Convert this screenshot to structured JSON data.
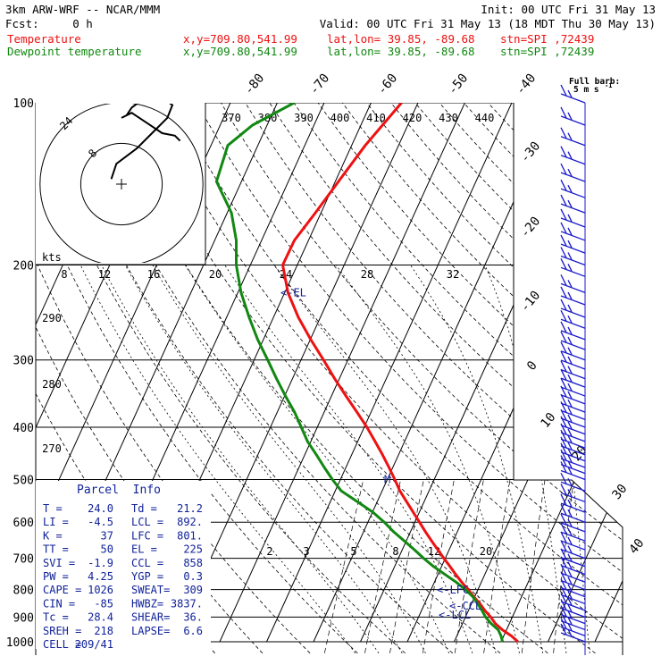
{
  "header": {
    "model": "3km ARW-WRF -- NCAR/MMM",
    "init": "Init: 00 UTC Fri 31 May 13",
    "fcst": "Fcst:     0 h",
    "valid": "Valid: 00 UTC Fri 31 May 13 (18 MDT Thu 30 May 13)",
    "temp_label": "Temperature",
    "dew_label": "Dewpoint temperature",
    "xy": "x,y=709.80,541.99",
    "latlon": "lat,lon= 39.85, -89.68",
    "stn": "stn=SPI ,72439",
    "colors": {
      "temperature": "#ee1111",
      "dewpoint": "#118811",
      "text": "#000000",
      "annot": "#112299"
    }
  },
  "chart_data": {
    "type": "line",
    "title": "",
    "y_axis": {
      "label": "",
      "scale": "log-pressure",
      "range_hPa": [
        1000,
        100
      ],
      "ticks": [
        "100",
        "200",
        "300",
        "400",
        "500",
        "600",
        "700",
        "800",
        "900",
        "1000"
      ]
    },
    "isotherm_labels": [
      "-80",
      "-70",
      "-60",
      "-50",
      "-40",
      "-30",
      "-20",
      "-10",
      "0",
      "10",
      "20",
      "30",
      "40"
    ],
    "theta_labels_top": [
      "370",
      "380",
      "390",
      "400",
      "410",
      "420",
      "430",
      "440"
    ],
    "theta_labels_left": [
      "290",
      "280",
      "270"
    ],
    "mixing_ratio_labels": [
      "8",
      "12",
      "16",
      "20",
      "24",
      "28",
      "32"
    ],
    "mixing_ratio_labels_low": [
      "2",
      "3",
      "5",
      "8",
      "12",
      "20"
    ],
    "series": [
      {
        "name": "Temperature",
        "points": [
          [
            1000,
            23.6
          ],
          [
            975,
            21.6
          ],
          [
            950,
            19.1
          ],
          [
            925,
            17.0
          ],
          [
            900,
            15.4
          ],
          [
            875,
            13.5
          ],
          [
            850,
            11.8
          ],
          [
            825,
            9.8
          ],
          [
            800,
            7.9
          ],
          [
            775,
            5.8
          ],
          [
            750,
            3.8
          ],
          [
            725,
            1.8
          ],
          [
            700,
            -0.3
          ],
          [
            675,
            -2.4
          ],
          [
            650,
            -4.6
          ],
          [
            625,
            -6.8
          ],
          [
            600,
            -9.0
          ],
          [
            575,
            -11.3
          ],
          [
            550,
            -13.7
          ],
          [
            525,
            -16.2
          ],
          [
            500,
            -18.4
          ],
          [
            475,
            -20.8
          ],
          [
            450,
            -23.4
          ],
          [
            425,
            -26.3
          ],
          [
            400,
            -29.4
          ],
          [
            375,
            -33.0
          ],
          [
            350,
            -36.9
          ],
          [
            325,
            -41.0
          ],
          [
            300,
            -45.2
          ],
          [
            275,
            -49.9
          ],
          [
            250,
            -54.7
          ],
          [
            225,
            -59.3
          ],
          [
            200,
            -63.1
          ],
          [
            180,
            -63.0
          ],
          [
            160,
            -61.2
          ],
          [
            140,
            -59.3
          ],
          [
            120,
            -57.1
          ],
          [
            100,
            -53.5
          ]
        ]
      },
      {
        "name": "Dewpoint temperature",
        "points": [
          [
            1000,
            20.3
          ],
          [
            975,
            19.4
          ],
          [
            950,
            18.2
          ],
          [
            925,
            16.1
          ],
          [
            900,
            14.3
          ],
          [
            875,
            12.9
          ],
          [
            850,
            11.3
          ],
          [
            825,
            9.6
          ],
          [
            800,
            7.3
          ],
          [
            775,
            4.6
          ],
          [
            750,
            1.5
          ],
          [
            725,
            -1.7
          ],
          [
            700,
            -4.6
          ],
          [
            675,
            -7.4
          ],
          [
            650,
            -10.4
          ],
          [
            625,
            -13.6
          ],
          [
            600,
            -16.5
          ],
          [
            575,
            -19.9
          ],
          [
            550,
            -24.2
          ],
          [
            525,
            -28.7
          ],
          [
            500,
            -31.7
          ],
          [
            475,
            -34.6
          ],
          [
            450,
            -37.5
          ],
          [
            425,
            -40.7
          ],
          [
            400,
            -43.4
          ],
          [
            375,
            -46.3
          ],
          [
            350,
            -49.8
          ],
          [
            325,
            -53.4
          ],
          [
            300,
            -57.1
          ],
          [
            275,
            -61.2
          ],
          [
            250,
            -65.2
          ],
          [
            225,
            -69.3
          ],
          [
            200,
            -73.0
          ],
          [
            180,
            -75.4
          ],
          [
            160,
            -79.1
          ],
          [
            140,
            -85.3
          ],
          [
            120,
            -86.4
          ],
          [
            110,
            -83.1
          ],
          [
            100,
            -76.4
          ]
        ]
      }
    ],
    "levels": [
      {
        "label": "<-EL",
        "p": 225
      },
      {
        "label": "<-LFC",
        "p": 801
      },
      {
        "label": "<-CCL",
        "p": 858
      },
      {
        "label": "<-LCL",
        "p": 892
      },
      {
        "label": "M",
        "p": 500
      }
    ],
    "wind_barbs_hPa": [
      100,
      110,
      120,
      130,
      140,
      150,
      160,
      170,
      180,
      190,
      200,
      210,
      225,
      237,
      250,
      262,
      275,
      287,
      300,
      312,
      325,
      337,
      350,
      362,
      375,
      387,
      400,
      412,
      425,
      437,
      450,
      462,
      475,
      487,
      500,
      525,
      550,
      575,
      600,
      625,
      650,
      675,
      700,
      725,
      750,
      775,
      800,
      825,
      850,
      875,
      900,
      925,
      950,
      975,
      1000
    ]
  },
  "hodograph": {
    "ring_labels": [
      "8",
      "24"
    ],
    "units": "kts",
    "trace_kts": [
      [
        -4,
        2
      ],
      [
        -2,
        8
      ],
      [
        6,
        14
      ],
      [
        12,
        20
      ],
      [
        18,
        26
      ],
      [
        20,
        31
      ],
      [
        16,
        34
      ],
      [
        12,
        35
      ],
      [
        8,
        33
      ],
      [
        4,
        30
      ],
      [
        2,
        27
      ],
      [
        0,
        26
      ],
      [
        4,
        28
      ],
      [
        10,
        24
      ],
      [
        16,
        20
      ],
      [
        21,
        19
      ],
      [
        23,
        17
      ]
    ]
  },
  "barb_legend": {
    "line1": "Full barb:",
    "line2": "5 m s",
    "exp": "-1"
  },
  "parcel_info": {
    "title": "Parcel  Info",
    "rows": [
      [
        "T  =",
        "24.0",
        "Td =",
        "21.2"
      ],
      [
        "LI =",
        "-4.5",
        "LCL =",
        "892."
      ],
      [
        "K  =",
        "37",
        "LFC =",
        "801."
      ],
      [
        "TT =",
        "50",
        "EL  =",
        "225"
      ],
      [
        "SVI =",
        "-1.9",
        "CCL =",
        "858"
      ],
      [
        "PW =",
        "4.25",
        "YGP =",
        "0.3"
      ],
      [
        "CAPE =",
        "1026",
        "SWEAT=",
        "309"
      ],
      [
        "CIN =",
        "-85",
        "HWBZ=",
        "3837."
      ],
      [
        "Tc =",
        "28.4",
        "SHEAR=",
        "36."
      ],
      [
        "SREH =",
        "218",
        "LAPSE=",
        "6.6"
      ],
      [
        "CELL =",
        "209/41",
        "",
        ""
      ]
    ]
  }
}
